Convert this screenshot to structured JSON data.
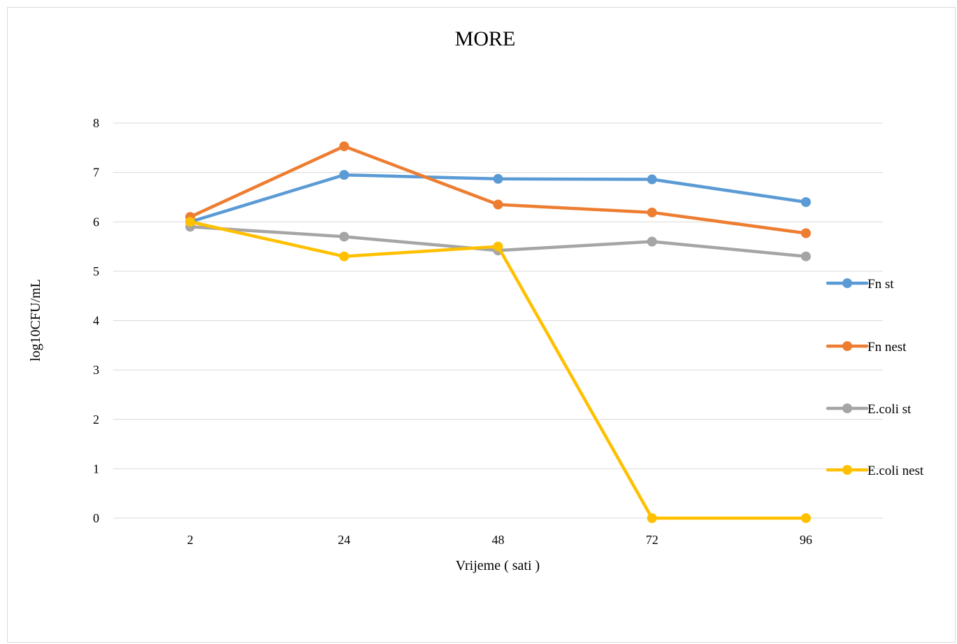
{
  "chart_data": {
    "type": "line",
    "title": "MORE",
    "xlabel": "Vrijeme ( sati )",
    "ylabel": "log10CFU/mL",
    "categories": [
      "2",
      "24",
      "48",
      "72",
      "96"
    ],
    "ylim": [
      0,
      8
    ],
    "yticks": [
      "0",
      "1",
      "2",
      "3",
      "4",
      "5",
      "6",
      "7",
      "8"
    ],
    "grid": true,
    "legend_position": "right",
    "series": [
      {
        "name": "Fn st",
        "color": "#5b9bd5",
        "values": [
          6.0,
          6.95,
          6.87,
          6.86,
          6.4
        ]
      },
      {
        "name": "Fn nest",
        "color": "#ed7d31",
        "values": [
          6.1,
          7.53,
          6.35,
          6.19,
          5.77
        ]
      },
      {
        "name": "E.coli st",
        "color": "#a5a5a5",
        "values": [
          5.9,
          5.7,
          5.42,
          5.6,
          5.3
        ]
      },
      {
        "name": "E.coli nest",
        "color": "#ffc000",
        "values": [
          6.0,
          5.3,
          5.5,
          0.0,
          0.0
        ]
      }
    ]
  }
}
